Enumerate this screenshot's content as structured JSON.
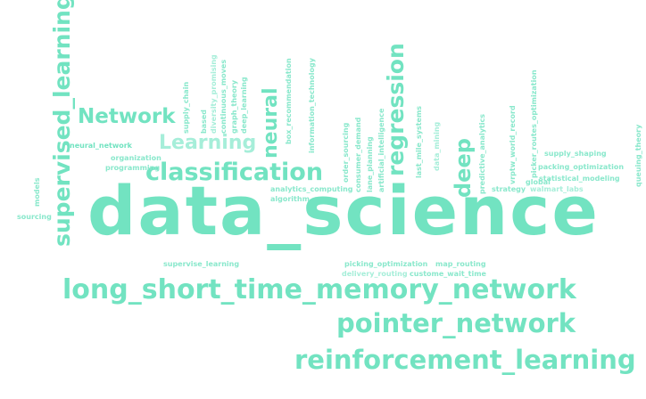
{
  "words": {
    "data_science": "data_science",
    "long_short_time_memory_network": "long_short_time_memory_network",
    "pointer_network": "pointer_network",
    "reinforcement_learning": "reinforcement_learning",
    "classification": "classification",
    "network": "Network",
    "learning": "Learning",
    "supervised_learning": "supervised_learning",
    "regression": "regression",
    "neural": "neural",
    "deep": "deep",
    "neural_network": "neural_network",
    "organization": "organization",
    "programming": "programming",
    "models": "models",
    "sourcing": "sourcing",
    "supply_chain": "supply_chain",
    "based": "based",
    "continuous_moves": "continuous_moves",
    "graph_theory": "graph_theory",
    "deep_learning": "deep_learning",
    "diversity_promising": "diversity_promising",
    "box_recommendation": "box_recommendation",
    "information_technology": "information_technology",
    "analytics_computing": "analytics_computing",
    "algorithm": "algorithm",
    "order_sourcing": "order_sourcing",
    "consumer_demand": "consumer_demand",
    "lane_planning": "lane_planning",
    "artificial_intelligence": "artificial_intelligence",
    "last_mile_systems": "last_mile_systems",
    "data_mining": "data_mining",
    "predictive_analytics": "predictive_analytics",
    "vrptw_world_record": "vrptw_world_record",
    "strategy": "strategy",
    "global": "global",
    "picker_routes_optimization": "picker_routes_optimization",
    "supply_shaping": "supply_shaping",
    "packing_optimization": "packing_optimization",
    "statistical_modeling": "statistical_modeling",
    "walmart_labs": "walmart_labs",
    "queuing_theory": "queuing_theory",
    "supervise_learning": "supervise_learning",
    "picking_optimization": "picking_optimization",
    "delivery_routing": "delivery_routing",
    "map_routing": "map_routing",
    "custome_wait_time": "custome_wait_time"
  },
  "colors": {
    "primary": "#72e3c1",
    "light": "#a6eed9",
    "dark": "#5fd8b5"
  }
}
